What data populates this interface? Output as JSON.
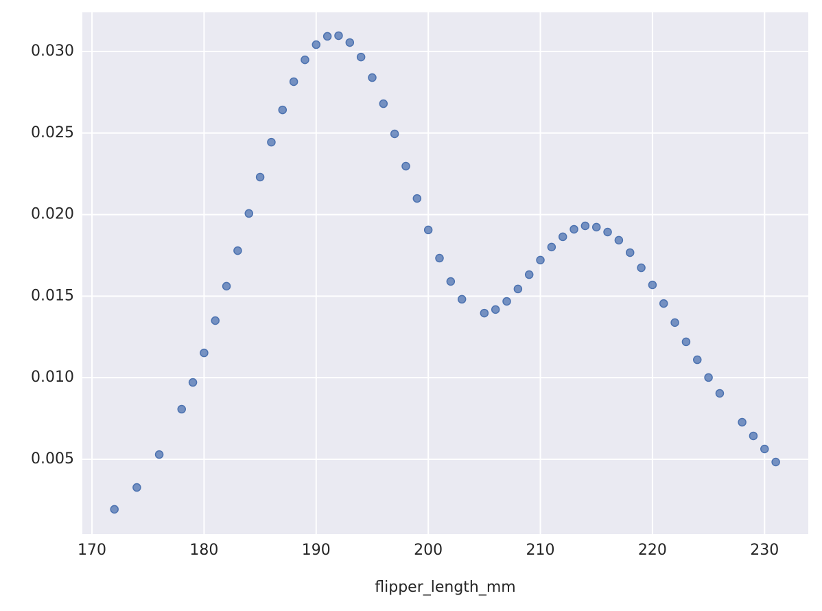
{
  "chart_data": {
    "type": "scatter",
    "x_label": "flipper_length_mm",
    "x": [
      172,
      174,
      176,
      178,
      179,
      180,
      181,
      182,
      183,
      184,
      185,
      186,
      187,
      188,
      189,
      190,
      191,
      192,
      193,
      194,
      195,
      196,
      197,
      198,
      199,
      200,
      201,
      202,
      203,
      205,
      206,
      207,
      208,
      209,
      210,
      211,
      212,
      213,
      214,
      215,
      216,
      217,
      218,
      219,
      220,
      221,
      222,
      223,
      224,
      225,
      226,
      228,
      229,
      230,
      231
    ],
    "y": [
      0.00193,
      0.00327,
      0.00529,
      0.00807,
      0.00971,
      0.01152,
      0.0135,
      0.01561,
      0.01779,
      0.02007,
      0.0223,
      0.02444,
      0.02642,
      0.02815,
      0.02949,
      0.03042,
      0.03093,
      0.03097,
      0.03055,
      0.02966,
      0.0284,
      0.0268,
      0.02495,
      0.02297,
      0.02099,
      0.01906,
      0.01733,
      0.0159,
      0.01481,
      0.01396,
      0.01418,
      0.01468,
      0.01544,
      0.01632,
      0.01721,
      0.01801,
      0.01864,
      0.0191,
      0.01931,
      0.01923,
      0.01893,
      0.01843,
      0.01767,
      0.01674,
      0.01569,
      0.01455,
      0.01338,
      0.0122,
      0.0111,
      0.01001,
      0.00904,
      0.00727,
      0.00643,
      0.00563,
      0.00483
    ],
    "color": "#4c72b0",
    "xlim": [
      169.14,
      233.9
    ],
    "ylim": [
      0.00041,
      0.0324
    ],
    "xticks": [
      170,
      180,
      190,
      200,
      210,
      220,
      230
    ],
    "yticks": [
      0.005,
      {
        "value": 0.01,
        "label": "0.010"
      },
      0.015,
      {
        "value": 0.02,
        "label": "0.020"
      },
      0.025,
      {
        "value": 0.03,
        "label": "0.030"
      }
    ],
    "grid": true
  }
}
